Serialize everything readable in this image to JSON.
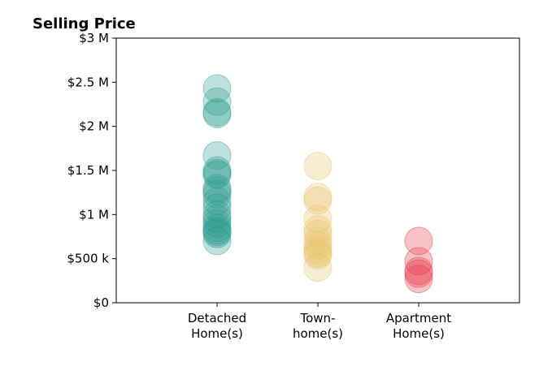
{
  "chart_data": {
    "type": "scatter",
    "title": "Selling Price",
    "xlabel": "",
    "ylabel": "",
    "ylim": [
      0,
      3000000
    ],
    "yticks": [
      {
        "value": 0,
        "label": "$0"
      },
      {
        "value": 500000,
        "label": "$500 k"
      },
      {
        "value": 1000000,
        "label": "$1 M"
      },
      {
        "value": 1500000,
        "label": "$1.5 M"
      },
      {
        "value": 2000000,
        "label": "$2 M"
      },
      {
        "value": 2500000,
        "label": "$2.5 M"
      },
      {
        "value": 3000000,
        "label": "$3 M"
      }
    ],
    "categories": [
      {
        "label_lines": [
          "Detached",
          "Home(s)"
        ],
        "color": "#2a9d8f",
        "values": [
          2430000,
          2280000,
          2160000,
          2140000,
          1670000,
          1500000,
          1470000,
          1450000,
          1300000,
          1270000,
          1230000,
          1150000,
          1080000,
          1000000,
          950000,
          900000,
          850000,
          820000,
          800000,
          780000,
          700000
        ]
      },
      {
        "label_lines": [
          "Town-",
          "home(s)"
        ],
        "color": "#e9c46a",
        "values": [
          1550000,
          1200000,
          1160000,
          950000,
          830000,
          780000,
          700000,
          650000,
          600000,
          560000,
          540000,
          400000
        ]
      },
      {
        "label_lines": [
          "Apartment",
          "Home(s)"
        ],
        "color": "#e63946",
        "values": [
          700000,
          470000,
          360000,
          330000,
          270000
        ]
      }
    ],
    "marker_alpha": 0.3,
    "grid": false,
    "legend": "none"
  }
}
